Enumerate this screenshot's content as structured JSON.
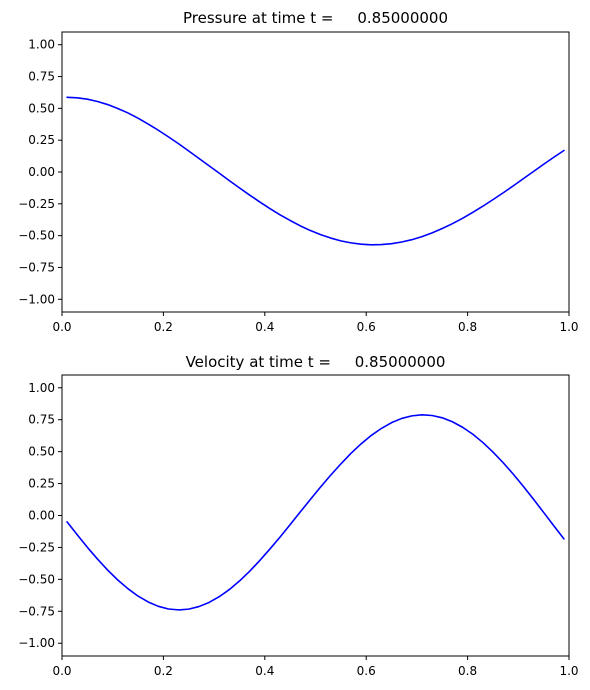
{
  "chart_data": [
    {
      "type": "line",
      "title": "Pressure at time t =     0.85000000",
      "xlabel": "",
      "ylabel": "",
      "xlim": [
        0,
        1
      ],
      "ylim": [
        -1.1,
        1.1
      ],
      "xticks": [
        0.0,
        0.2,
        0.4,
        0.6,
        0.8,
        1.0
      ],
      "xtick_labels": [
        "0.0",
        "0.2",
        "0.4",
        "0.6",
        "0.8",
        "1.0"
      ],
      "yticks": [
        -1.0,
        -0.75,
        -0.5,
        -0.25,
        0.0,
        0.25,
        0.5,
        0.75,
        1.0
      ],
      "ytick_labels": [
        "−1.00",
        "−0.75",
        "−0.50",
        "−0.25",
        "0.00",
        "0.25",
        "0.50",
        "0.75",
        "1.00"
      ],
      "grid": false,
      "color": "#0000ff",
      "x": [
        0.01,
        0.03,
        0.05,
        0.07,
        0.09,
        0.11,
        0.13,
        0.15,
        0.17,
        0.19,
        0.21,
        0.23,
        0.25,
        0.27,
        0.29,
        0.31,
        0.33,
        0.35,
        0.37,
        0.39,
        0.41,
        0.43,
        0.45,
        0.47,
        0.49,
        0.51,
        0.53,
        0.55,
        0.57,
        0.59,
        0.61,
        0.63,
        0.65,
        0.67,
        0.69,
        0.71,
        0.73,
        0.75,
        0.77,
        0.79,
        0.81,
        0.83,
        0.85,
        0.87,
        0.89,
        0.91,
        0.93,
        0.95,
        0.97,
        0.99
      ],
      "y": [
        0.587,
        0.583,
        0.572,
        0.554,
        0.53,
        0.499,
        0.464,
        0.423,
        0.377,
        0.328,
        0.276,
        0.222,
        0.165,
        0.107,
        0.049,
        -0.009,
        -0.068,
        -0.125,
        -0.181,
        -0.235,
        -0.287,
        -0.336,
        -0.381,
        -0.423,
        -0.46,
        -0.492,
        -0.519,
        -0.541,
        -0.557,
        -0.567,
        -0.572,
        -0.57,
        -0.563,
        -0.55,
        -0.532,
        -0.508,
        -0.478,
        -0.444,
        -0.406,
        -0.364,
        -0.318,
        -0.269,
        -0.217,
        -0.164,
        -0.109,
        -0.052,
        0.004,
        0.061,
        0.116,
        0.169
      ]
    },
    {
      "type": "line",
      "title": "Velocity at time t =     0.85000000",
      "xlabel": "",
      "ylabel": "",
      "xlim": [
        0,
        1
      ],
      "ylim": [
        -1.1,
        1.1
      ],
      "xticks": [
        0.0,
        0.2,
        0.4,
        0.6,
        0.8,
        1.0
      ],
      "xtick_labels": [
        "0.0",
        "0.2",
        "0.4",
        "0.6",
        "0.8",
        "1.0"
      ],
      "yticks": [
        -1.0,
        -0.75,
        -0.5,
        -0.25,
        0.0,
        0.25,
        0.5,
        0.75,
        1.0
      ],
      "ytick_labels": [
        "−1.00",
        "−0.75",
        "−0.50",
        "−0.25",
        "0.00",
        "0.25",
        "0.50",
        "0.75",
        "1.00"
      ],
      "grid": false,
      "color": "#0000ff",
      "x": [
        0.01,
        0.03,
        0.05,
        0.07,
        0.09,
        0.11,
        0.13,
        0.15,
        0.17,
        0.19,
        0.21,
        0.23,
        0.25,
        0.27,
        0.29,
        0.31,
        0.33,
        0.35,
        0.37,
        0.39,
        0.41,
        0.43,
        0.45,
        0.47,
        0.49,
        0.51,
        0.53,
        0.55,
        0.57,
        0.59,
        0.61,
        0.63,
        0.65,
        0.67,
        0.69,
        0.71,
        0.73,
        0.75,
        0.77,
        0.79,
        0.81,
        0.83,
        0.85,
        0.87,
        0.89,
        0.91,
        0.93,
        0.95,
        0.97,
        0.99
      ],
      "y": [
        -0.05,
        -0.151,
        -0.249,
        -0.341,
        -0.427,
        -0.505,
        -0.573,
        -0.631,
        -0.677,
        -0.711,
        -0.732,
        -0.739,
        -0.733,
        -0.713,
        -0.681,
        -0.636,
        -0.58,
        -0.513,
        -0.437,
        -0.353,
        -0.263,
        -0.169,
        -0.071,
        0.028,
        0.126,
        0.223,
        0.316,
        0.404,
        0.487,
        0.561,
        0.627,
        0.682,
        0.727,
        0.76,
        0.78,
        0.788,
        0.783,
        0.765,
        0.734,
        0.691,
        0.637,
        0.572,
        0.497,
        0.414,
        0.324,
        0.228,
        0.127,
        0.024,
        -0.08,
        -0.183
      ]
    }
  ]
}
